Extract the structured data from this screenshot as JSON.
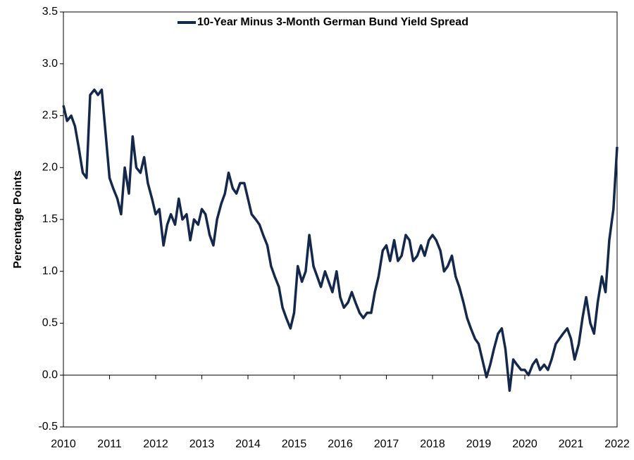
{
  "chart_data": {
    "type": "line",
    "y_label": "Percentage Points",
    "legend": "top",
    "x": [
      2010,
      2010.08,
      2010.17,
      2010.25,
      2010.33,
      2010.42,
      2010.5,
      2010.58,
      2010.67,
      2010.75,
      2010.83,
      2010.92,
      2011,
      2011.08,
      2011.17,
      2011.25,
      2011.33,
      2011.42,
      2011.5,
      2011.58,
      2011.67,
      2011.75,
      2011.83,
      2011.92,
      2012,
      2012.08,
      2012.17,
      2012.25,
      2012.33,
      2012.42,
      2012.5,
      2012.58,
      2012.67,
      2012.75,
      2012.83,
      2012.92,
      2013,
      2013.08,
      2013.17,
      2013.25,
      2013.33,
      2013.42,
      2013.5,
      2013.58,
      2013.67,
      2013.75,
      2013.83,
      2013.92,
      2014,
      2014.08,
      2014.17,
      2014.25,
      2014.33,
      2014.42,
      2014.5,
      2014.58,
      2014.67,
      2014.75,
      2014.83,
      2014.92,
      2015,
      2015.08,
      2015.17,
      2015.25,
      2015.33,
      2015.42,
      2015.5,
      2015.58,
      2015.67,
      2015.75,
      2015.83,
      2015.92,
      2016,
      2016.08,
      2016.17,
      2016.25,
      2016.33,
      2016.42,
      2016.5,
      2016.58,
      2016.67,
      2016.75,
      2016.83,
      2016.92,
      2017,
      2017.08,
      2017.17,
      2017.25,
      2017.33,
      2017.42,
      2017.5,
      2017.58,
      2017.67,
      2017.75,
      2017.83,
      2017.92,
      2018,
      2018.08,
      2018.17,
      2018.25,
      2018.33,
      2018.42,
      2018.5,
      2018.58,
      2018.67,
      2018.75,
      2018.83,
      2018.92,
      2019,
      2019.08,
      2019.17,
      2019.25,
      2019.33,
      2019.42,
      2019.5,
      2019.58,
      2019.67,
      2019.75,
      2019.83,
      2019.92,
      2020,
      2020.08,
      2020.17,
      2020.25,
      2020.33,
      2020.42,
      2020.5,
      2020.58,
      2020.67,
      2020.75,
      2020.83,
      2020.92,
      2021,
      2021.08,
      2021.17,
      2021.25,
      2021.33,
      2021.42,
      2021.5,
      2021.58,
      2021.67,
      2021.75,
      2021.83,
      2021.92,
      2022
    ],
    "series": [
      {
        "name": "10-Year Minus 3-Month German Bund Yield Spread",
        "color": "#14284b",
        "values": [
          2.6,
          2.45,
          2.5,
          2.4,
          2.2,
          1.95,
          1.9,
          2.7,
          2.75,
          2.7,
          2.75,
          2.3,
          1.9,
          1.8,
          1.7,
          1.55,
          2.0,
          1.75,
          2.3,
          2.0,
          1.95,
          2.1,
          1.85,
          1.7,
          1.55,
          1.6,
          1.25,
          1.45,
          1.55,
          1.45,
          1.7,
          1.5,
          1.55,
          1.3,
          1.5,
          1.45,
          1.6,
          1.55,
          1.35,
          1.25,
          1.5,
          1.65,
          1.75,
          1.95,
          1.8,
          1.75,
          1.85,
          1.85,
          1.7,
          1.55,
          1.5,
          1.45,
          1.35,
          1.25,
          1.05,
          0.95,
          0.85,
          0.65,
          0.55,
          0.45,
          0.6,
          1.05,
          0.9,
          1.0,
          1.35,
          1.05,
          0.95,
          0.85,
          1.0,
          0.9,
          0.8,
          1.0,
          0.75,
          0.65,
          0.7,
          0.8,
          0.7,
          0.6,
          0.55,
          0.6,
          0.6,
          0.8,
          0.95,
          1.2,
          1.25,
          1.1,
          1.3,
          1.1,
          1.15,
          1.35,
          1.3,
          1.1,
          1.15,
          1.25,
          1.15,
          1.3,
          1.35,
          1.3,
          1.2,
          1.0,
          1.05,
          1.15,
          0.95,
          0.85,
          0.7,
          0.55,
          0.45,
          0.35,
          0.3,
          0.15,
          -0.02,
          0.1,
          0.25,
          0.4,
          0.45,
          0.25,
          -0.15,
          0.15,
          0.1,
          0.05,
          0.05,
          0.0,
          0.1,
          0.15,
          0.05,
          0.1,
          0.05,
          0.15,
          0.3,
          0.35,
          0.4,
          0.45,
          0.35,
          0.15,
          0.3,
          0.55,
          0.75,
          0.5,
          0.4,
          0.7,
          0.95,
          0.8,
          1.3,
          1.6,
          2.2
        ]
      }
    ],
    "xlim": [
      2010,
      2022
    ],
    "xticks": [
      2010,
      2011,
      2012,
      2013,
      2014,
      2015,
      2016,
      2017,
      2018,
      2019,
      2020,
      2021,
      2022
    ],
    "ylim": [
      -0.5,
      3.5
    ],
    "yticks": [
      -0.5,
      {
        "value": 0,
        "label": "0.0"
      },
      0.5,
      {
        "value": 1,
        "label": "1.0"
      },
      1.5,
      {
        "value": 2,
        "label": "2.0"
      },
      2.5,
      {
        "value": 3,
        "label": "3.0"
      },
      3.5
    ]
  }
}
